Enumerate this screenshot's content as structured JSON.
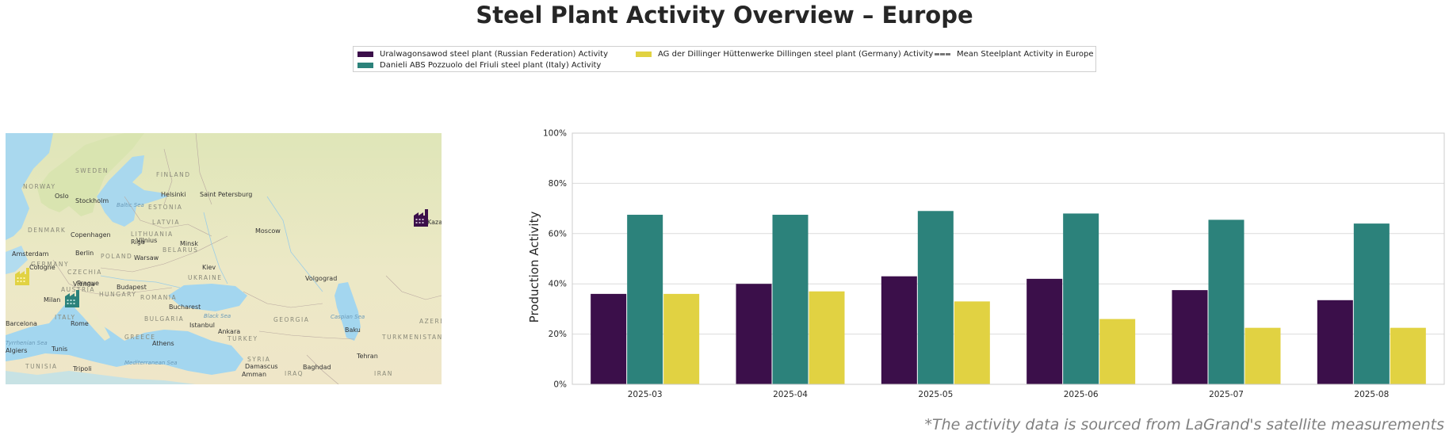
{
  "title": "Steel Plant Activity Overview – Europe",
  "footnote": "*The activity data is sourced from LaGrand's satellite measurements",
  "legend": {
    "items": [
      {
        "label": "Uralwagonsawod steel plant (Russian Federation) Activity",
        "color": "#3b0f4a",
        "kind": "patch"
      },
      {
        "label": "Danieli ABS Pozzuolo del Friuli steel plant (Italy) Activity",
        "color": "#2c827b",
        "kind": "patch"
      },
      {
        "label": "AG der Dillinger Hüttenwerke Dillingen steel plant (Germany) Activity",
        "color": "#e1d242",
        "kind": "patch"
      },
      {
        "label": "Mean Steelplant Activity in Europe",
        "color": "#777777",
        "kind": "dashed-line"
      }
    ]
  },
  "map": {
    "countries": [
      "SWEDEN",
      "FINLAND",
      "NORWAY",
      "ESTONIA",
      "LATVIA",
      "LITHUANIA",
      "DENMARK",
      "BELARUS",
      "POLAND",
      "GERMANY",
      "CZECHIA",
      "UKRAINE",
      "AUSTRIA",
      "HUNGARY",
      "ROMANIA",
      "ITALY",
      "BULGARIA",
      "GREECE",
      "TURKEY",
      "GEORGIA",
      "SYRIA",
      "IRAQ",
      "IRAN",
      "TUNISIA",
      "TURKMENISTAN",
      "AZERB"
    ],
    "cities": [
      "Oslo",
      "Stockholm",
      "Helsinki",
      "Saint Petersburg",
      "Moscow",
      "Copenhagen",
      "Riga",
      "Vilnius",
      "Minsk",
      "Amsterdam",
      "Berlin",
      "Warsaw",
      "Cologne",
      "Prague",
      "Kiev",
      "Vienna",
      "Budapest",
      "Volgograd",
      "Milan",
      "Bucharest",
      "Rome",
      "Istanbul",
      "Ankara",
      "Baku",
      "Athens",
      "Tunis",
      "Tripoli",
      "Tehran",
      "Damascus",
      "Baghdad",
      "Amman",
      "Algiers",
      "Barcelona",
      "Kazan"
    ],
    "waters": [
      "Baltic Sea",
      "Black Sea",
      "Caspian Sea",
      "Mediterranean Sea",
      "Tyrrhenian Sea"
    ],
    "markers": [
      {
        "name": "Uralwagonsawod",
        "color": "#3b0f4a"
      },
      {
        "name": "Danieli ABS Pozzuolo del Friuli",
        "color": "#2c827b"
      },
      {
        "name": "AG der Dillinger Hüttenwerke Dillingen",
        "color": "#e1d242"
      }
    ]
  },
  "chart_data": {
    "type": "bar",
    "categories": [
      "2025-03",
      "2025-04",
      "2025-05",
      "2025-06",
      "2025-07",
      "2025-08"
    ],
    "series": [
      {
        "name": "Uralwagonsawod steel plant (Russian Federation) Activity",
        "color": "#3b0f4a",
        "values": [
          36,
          40,
          43,
          42,
          37.5,
          33.5
        ]
      },
      {
        "name": "Danieli ABS Pozzuolo del Friuli steel plant (Italy) Activity",
        "color": "#2c827b",
        "values": [
          67.5,
          67.5,
          69,
          68,
          65.5,
          64
        ]
      },
      {
        "name": "AG der Dillinger Hüttenwerke Dillingen steel plant (Germany) Activity",
        "color": "#e1d242",
        "values": [
          36,
          37,
          33,
          26,
          22.5,
          22.5
        ]
      }
    ],
    "ylabel": "Production Activity",
    "xlabel": "",
    "ylim": [
      0,
      100
    ],
    "yticks": [
      "0%",
      "20%",
      "40%",
      "60%",
      "80%",
      "100%"
    ],
    "grid": "horizontal"
  }
}
